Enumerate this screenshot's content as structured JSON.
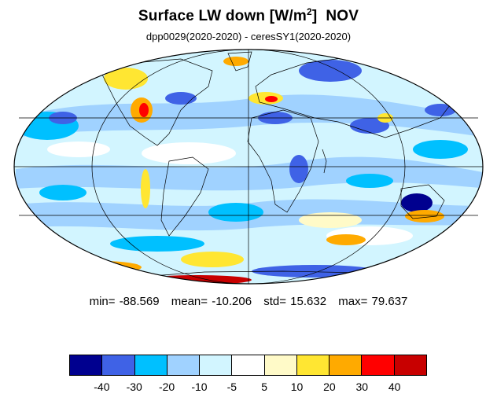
{
  "title": {
    "main": "Surface LW down [W/m",
    "sup": "2",
    "close": "]",
    "month": "NOV"
  },
  "subtitle": "dpp0029(2020-2020) - ceresSY1(2020-2020)",
  "stats": {
    "min": "min= -88.569",
    "mean": "mean= -10.206",
    "std": "std= 15.632",
    "max": "max= 79.637"
  },
  "colorbar": {
    "colors": [
      "#00008f",
      "#3f62e6",
      "#00c0ff",
      "#a0d2ff",
      "#d2f5ff",
      "#ffffff",
      "#fffac8",
      "#ffe632",
      "#ffaa00",
      "#ff0000",
      "#c80000"
    ],
    "labels": [
      "-40",
      "-30",
      "-20",
      "-10",
      "-5",
      "5",
      "10",
      "20",
      "30",
      "40"
    ]
  }
}
